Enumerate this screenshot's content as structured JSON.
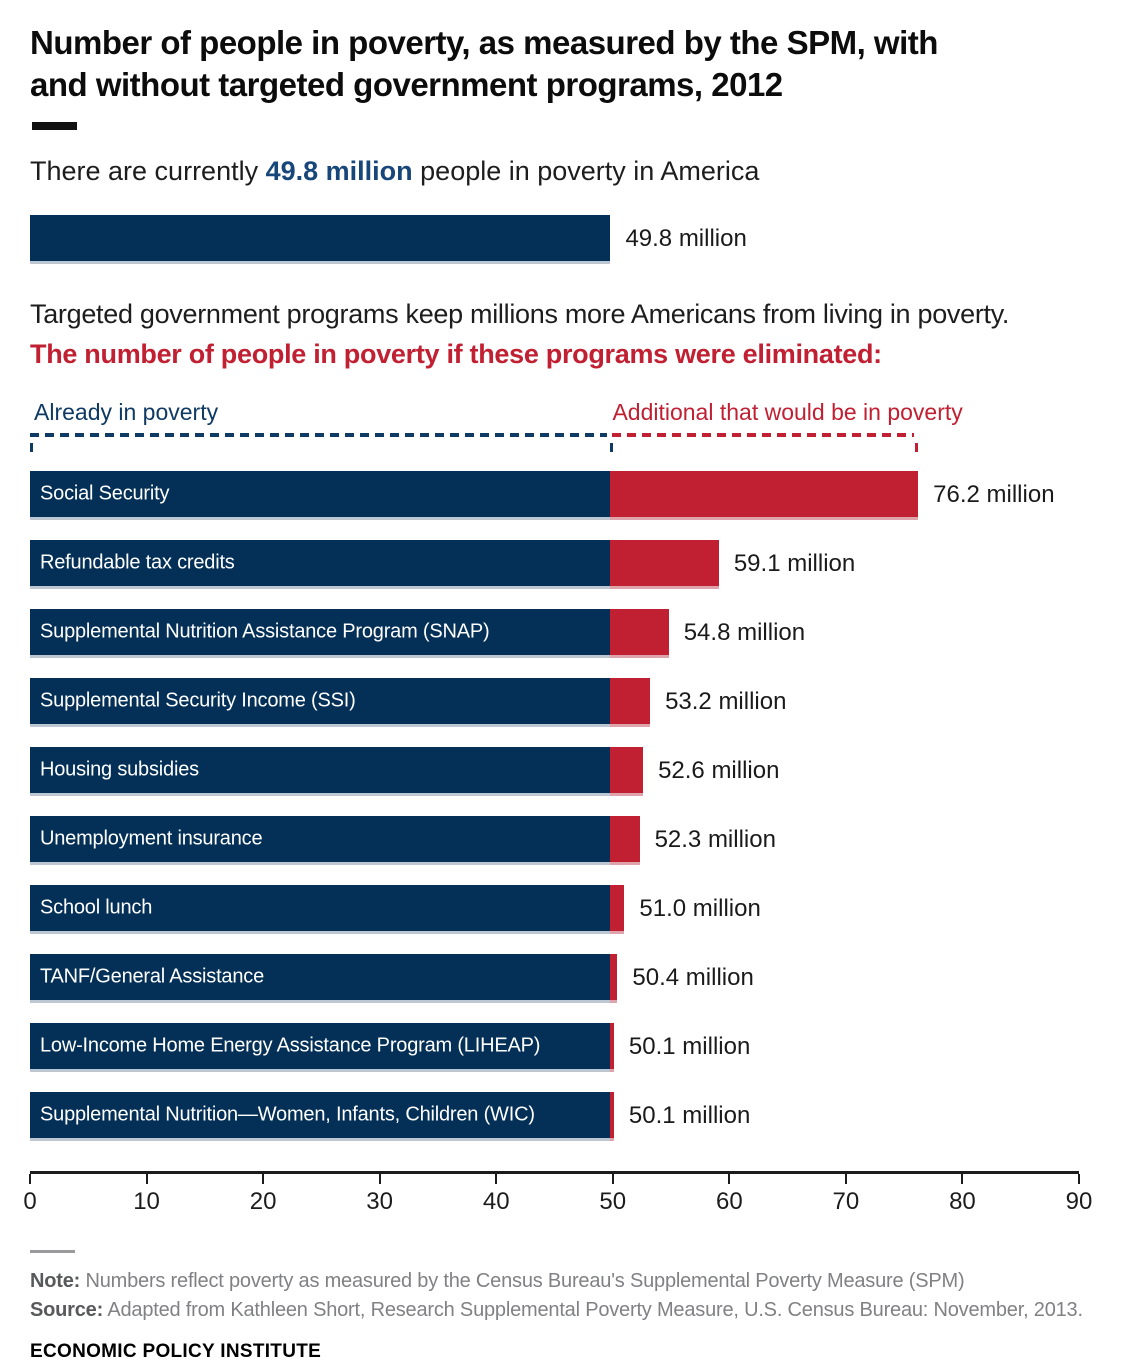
{
  "header": {
    "title": "Number of people in poverty, as measured by the SPM, with and without targeted government programs, 2012"
  },
  "intro": {
    "prefix": "There are currently ",
    "highlight": "49.8 million",
    "suffix": " people in poverty in America",
    "bar_value": 49.8,
    "bar_label": "49.8 million"
  },
  "lead": {
    "line1": "Targeted government programs keep millions more Americans from living in poverty.",
    "line2": "The number of people in poverty if these programs were eliminated:"
  },
  "legend": {
    "left_label": "Already in poverty",
    "right_label": "Additional that would be in poverty"
  },
  "chart_data": {
    "type": "bar",
    "orientation": "horizontal",
    "stacked": true,
    "title": "Number of people in poverty, as measured by the SPM, with and without targeted government programs, 2012",
    "xlim": [
      0,
      90
    ],
    "x_ticks": [
      0,
      10,
      20,
      30,
      40,
      50,
      60,
      70,
      80,
      90
    ],
    "grid": false,
    "baseline_poverty_millions": 49.8,
    "categories": [
      "Social Security",
      "Refundable tax credits",
      "Supplemental Nutrition Assistance Program (SNAP)",
      "Supplemental Security Income (SSI)",
      "Housing subsidies",
      "Unemployment insurance",
      "School lunch",
      "TANF/General Assistance",
      "Low-Income Home Energy Assistance Program (LIHEAP)",
      "Supplemental Nutrition—Women, Infants, Children (WIC)"
    ],
    "series": [
      {
        "name": "Already in poverty",
        "color": "#043057",
        "values": [
          49.8,
          49.8,
          49.8,
          49.8,
          49.8,
          49.8,
          49.8,
          49.8,
          49.8,
          49.8
        ]
      },
      {
        "name": "Additional that would be in poverty",
        "color": "#c02032",
        "values": [
          26.4,
          9.3,
          5.0,
          3.4,
          2.8,
          2.5,
          1.2,
          0.6,
          0.3,
          0.3
        ]
      }
    ],
    "totals": [
      76.2,
      59.1,
      54.8,
      53.2,
      52.6,
      52.3,
      51.0,
      50.4,
      50.1,
      50.1
    ],
    "total_labels": [
      "76.2 million",
      "59.1 million",
      "54.8 million",
      "53.2 million",
      "52.6 million",
      "52.3 million",
      "51.0 million",
      "50.4 million",
      "50.1 million",
      "50.1 million"
    ]
  },
  "footer": {
    "note_label": "Note:",
    "note_text": " Numbers reflect poverty as measured by the Census Bureau's Supplemental Poverty Measure (SPM)",
    "source_label": "Source:",
    "source_text": " Adapted from Kathleen Short, Research Supplemental Poverty Measure, U.S. Census Bureau: November, 2013.",
    "branding": "ECONOMIC POLICY INSTITUTE"
  },
  "colors": {
    "navy": "#043057",
    "red": "#c02032",
    "red_text": "#c02032",
    "highlight_blue": "#17477a",
    "legend_navy": "#0e3a64",
    "gray_text": "#808184"
  }
}
